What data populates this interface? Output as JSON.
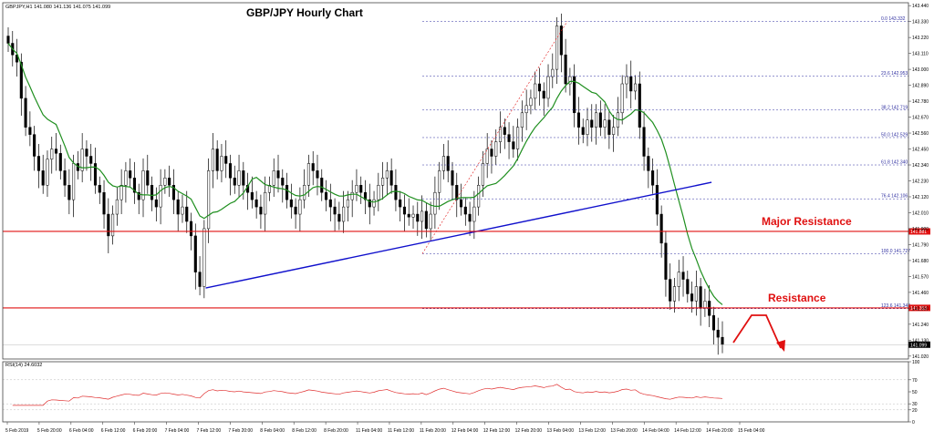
{
  "chart_data": {
    "type": "candlestick",
    "title": "GBP/JPY Hourly Chart",
    "header": "GBPJPY,H1  141.080 141.136 141.075 141.099",
    "y_ticks": [
      "143.440",
      "143.330",
      "143.220",
      "143.110",
      "143.000",
      "142.890",
      "142.780",
      "142.670",
      "142.560",
      "142.450",
      "142.340",
      "142.230",
      "142.120",
      "142.010",
      "141.900",
      "141.790",
      "141.680",
      "141.570",
      "141.460",
      "141.350",
      "141.240",
      "141.130",
      "141.020"
    ],
    "ylim": [
      141.0,
      143.46
    ],
    "x_ticks": [
      "5 Feb 2019",
      "5 Feb 20:00",
      "6 Feb 04:00",
      "6 Feb 12:00",
      "6 Feb 20:00",
      "7 Feb 04:00",
      "7 Feb 12:00",
      "7 Feb 20:00",
      "8 Feb 04:00",
      "8 Feb 12:00",
      "8 Feb 20:00",
      "11 Feb 04:00",
      "11 Feb 12:00",
      "11 Feb 20:00",
      "12 Feb 04:00",
      "12 Feb 12:00",
      "12 Feb 20:00",
      "13 Feb 04:00",
      "13 Feb 12:00",
      "13 Feb 20:00",
      "14 Feb 04:00",
      "14 Feb 12:00",
      "14 Feb 20:00",
      "15 Feb 04:00"
    ],
    "closes": [
      143.18,
      143.1,
      143.05,
      142.8,
      142.6,
      142.55,
      142.4,
      142.3,
      142.2,
      142.38,
      142.45,
      142.42,
      142.3,
      142.2,
      142.1,
      142.35,
      142.3,
      142.45,
      142.4,
      142.35,
      142.2,
      142.15,
      142.0,
      141.85,
      142.0,
      142.1,
      142.2,
      142.3,
      142.25,
      142.15,
      142.1,
      142.3,
      142.2,
      142.1,
      142.05,
      142.2,
      142.25,
      142.2,
      142.1,
      142.0,
      142.05,
      141.95,
      141.85,
      141.6,
      141.5,
      141.9,
      142.3,
      142.45,
      142.3,
      142.4,
      142.35,
      142.25,
      142.2,
      142.3,
      142.2,
      142.15,
      142.1,
      142.05,
      142.0,
      142.15,
      142.2,
      142.3,
      142.25,
      142.2,
      142.1,
      142.05,
      142.0,
      142.1,
      142.2,
      142.35,
      142.3,
      142.25,
      142.15,
      142.1,
      142.05,
      142.0,
      141.95,
      142.05,
      142.1,
      142.15,
      142.2,
      142.15,
      142.1,
      142.05,
      142.1,
      142.2,
      142.25,
      142.3,
      142.2,
      142.1,
      142.05,
      142.0,
      141.98,
      142.0,
      141.95,
      142.02,
      141.9,
      142.0,
      142.15,
      142.3,
      142.4,
      142.3,
      142.2,
      142.1,
      142.05,
      142.0,
      141.95,
      142.05,
      142.2,
      142.35,
      142.45,
      142.4,
      142.5,
      142.6,
      142.55,
      142.5,
      142.45,
      142.6,
      142.7,
      142.75,
      142.8,
      142.9,
      142.85,
      142.8,
      142.95,
      143.0,
      143.3,
      143.1,
      142.9,
      142.95,
      142.7,
      142.6,
      142.55,
      142.65,
      142.6,
      142.7,
      142.6,
      142.65,
      142.55,
      142.6,
      142.7,
      142.9,
      142.95,
      142.85,
      142.9,
      142.6,
      142.4,
      142.3,
      142.2,
      142.0,
      141.8,
      141.55,
      141.4,
      141.5,
      141.6,
      141.55,
      141.45,
      141.4,
      141.5,
      141.35,
      141.4,
      141.3,
      141.2,
      141.15,
      141.1
    ],
    "fib_levels": [
      {
        "label": "0.0 143.332",
        "value": 143.332
      },
      {
        "label": "23.6 142.953",
        "value": 142.953
      },
      {
        "label": "38.2 142.719",
        "value": 142.719
      },
      {
        "label": "50.0 142.529",
        "value": 142.529
      },
      {
        "label": "61.8 142.340",
        "value": 142.34
      },
      {
        "label": "76.4 142.106",
        "value": 142.106
      },
      {
        "label": "100.0 141.727",
        "value": 141.727
      },
      {
        "label": "123.6 141.348",
        "value": 141.348
      }
    ],
    "horizontal_lines": [
      {
        "value": 141.881,
        "color": "#e01010",
        "axis_label": "141.881",
        "note": "Major Resistance"
      },
      {
        "value": 141.353,
        "color": "#e01010",
        "axis_label": "141.353",
        "note": "Resistance"
      }
    ],
    "current_price_label": "141.099",
    "trendline": {
      "from": {
        "x": "7 Feb 12:00",
        "y": 141.49
      },
      "to": {
        "x": "14 Feb 20:00",
        "y": 142.22
      },
      "color": "#1010cc"
    },
    "rsi": {
      "label": "RSI(14) 24.6032",
      "y_ticks": [
        "100",
        "70",
        "50",
        "30",
        "20",
        "0"
      ],
      "ylim": [
        0,
        100
      ]
    },
    "colors": {
      "ma": "#1f8f1f",
      "candle": "#000000",
      "fib": "#2f2fa0",
      "rsi": "#e03030"
    }
  }
}
